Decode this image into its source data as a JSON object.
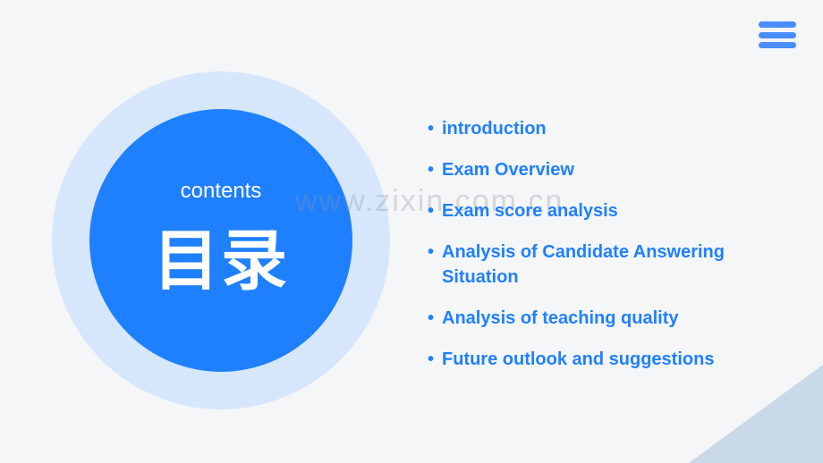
{
  "colors": {
    "background": "#f5f6f7",
    "accent": "#1f80ff",
    "outer_circle": "#d6e7fb",
    "white": "#ffffff",
    "triangle_fill": "#c9d9e8",
    "watermark": "rgba(140,150,160,0.32)"
  },
  "hamburger": {
    "bar_color": "#4a8dff"
  },
  "circle": {
    "label": "contents",
    "heading": "目录"
  },
  "toc": {
    "items": [
      "introduction",
      "Exam Overview",
      "Exam score analysis",
      "Analysis of Candidate Answering Situation",
      "Analysis of teaching quality",
      "Future outlook and suggestions"
    ]
  },
  "watermark": "www.zixin.com.cn"
}
